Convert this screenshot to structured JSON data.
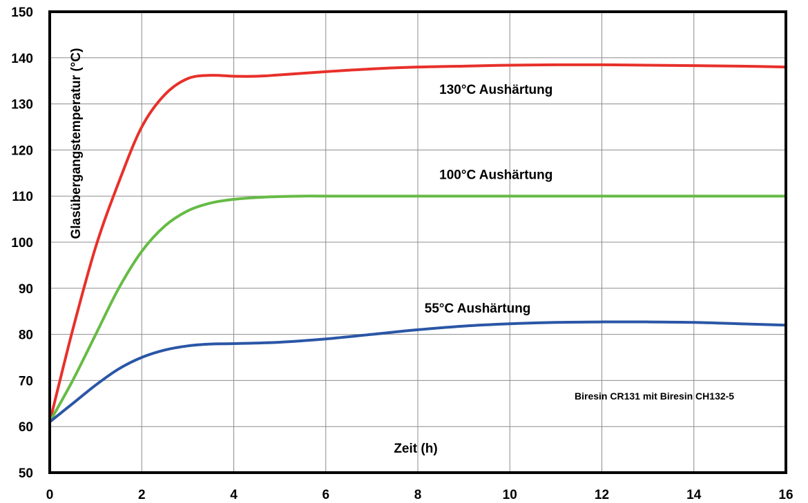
{
  "chart_data": {
    "type": "line",
    "title": "",
    "xlabel": "Zeit (h)",
    "ylabel": "Glasübergangstemperatur (°C)",
    "xlim": [
      0,
      16
    ],
    "ylim": [
      50,
      150
    ],
    "xticks": [
      0,
      2,
      4,
      6,
      8,
      10,
      12,
      14,
      16
    ],
    "yticks": [
      50,
      60,
      70,
      80,
      90,
      100,
      110,
      120,
      130,
      140,
      150
    ],
    "grid": true,
    "annotation": "Biresin CR131 mit Biresin CH132-5",
    "series": [
      {
        "name": "130°C Aushärtung",
        "color": "#e8302a",
        "x": [
          0,
          0.5,
          1,
          1.5,
          2,
          2.5,
          3,
          3.5,
          4,
          4.5,
          5,
          6,
          7,
          8,
          9,
          10,
          11,
          12,
          13,
          14,
          15,
          16
        ],
        "y": [
          61,
          81,
          99,
          113,
          125,
          132,
          135.5,
          136.2,
          136,
          136,
          136.3,
          137,
          137.6,
          138,
          138.2,
          138.4,
          138.5,
          138.5,
          138.4,
          138.3,
          138.2,
          138
        ]
      },
      {
        "name": "100°C Aushärtung",
        "color": "#66bb45",
        "x": [
          0,
          0.5,
          1,
          1.5,
          2,
          2.5,
          3,
          3.5,
          4,
          4.5,
          5,
          5.5,
          6,
          8,
          10,
          12,
          14,
          16
        ],
        "y": [
          61,
          70,
          80,
          90,
          98,
          103.5,
          106.8,
          108.5,
          109.3,
          109.7,
          109.9,
          110,
          110,
          110,
          110,
          110,
          110,
          110
        ]
      },
      {
        "name": "55°C Aushärtung",
        "color": "#2a56a6",
        "x": [
          0,
          0.5,
          1,
          1.5,
          2,
          2.5,
          3,
          3.5,
          4,
          5,
          6,
          7,
          8,
          9,
          10,
          11,
          12,
          13,
          14,
          15,
          16
        ],
        "y": [
          61,
          65,
          69,
          72.5,
          75,
          76.6,
          77.5,
          77.9,
          78,
          78.3,
          79,
          80,
          81,
          81.8,
          82.3,
          82.6,
          82.7,
          82.7,
          82.6,
          82.3,
          82
        ]
      }
    ]
  }
}
